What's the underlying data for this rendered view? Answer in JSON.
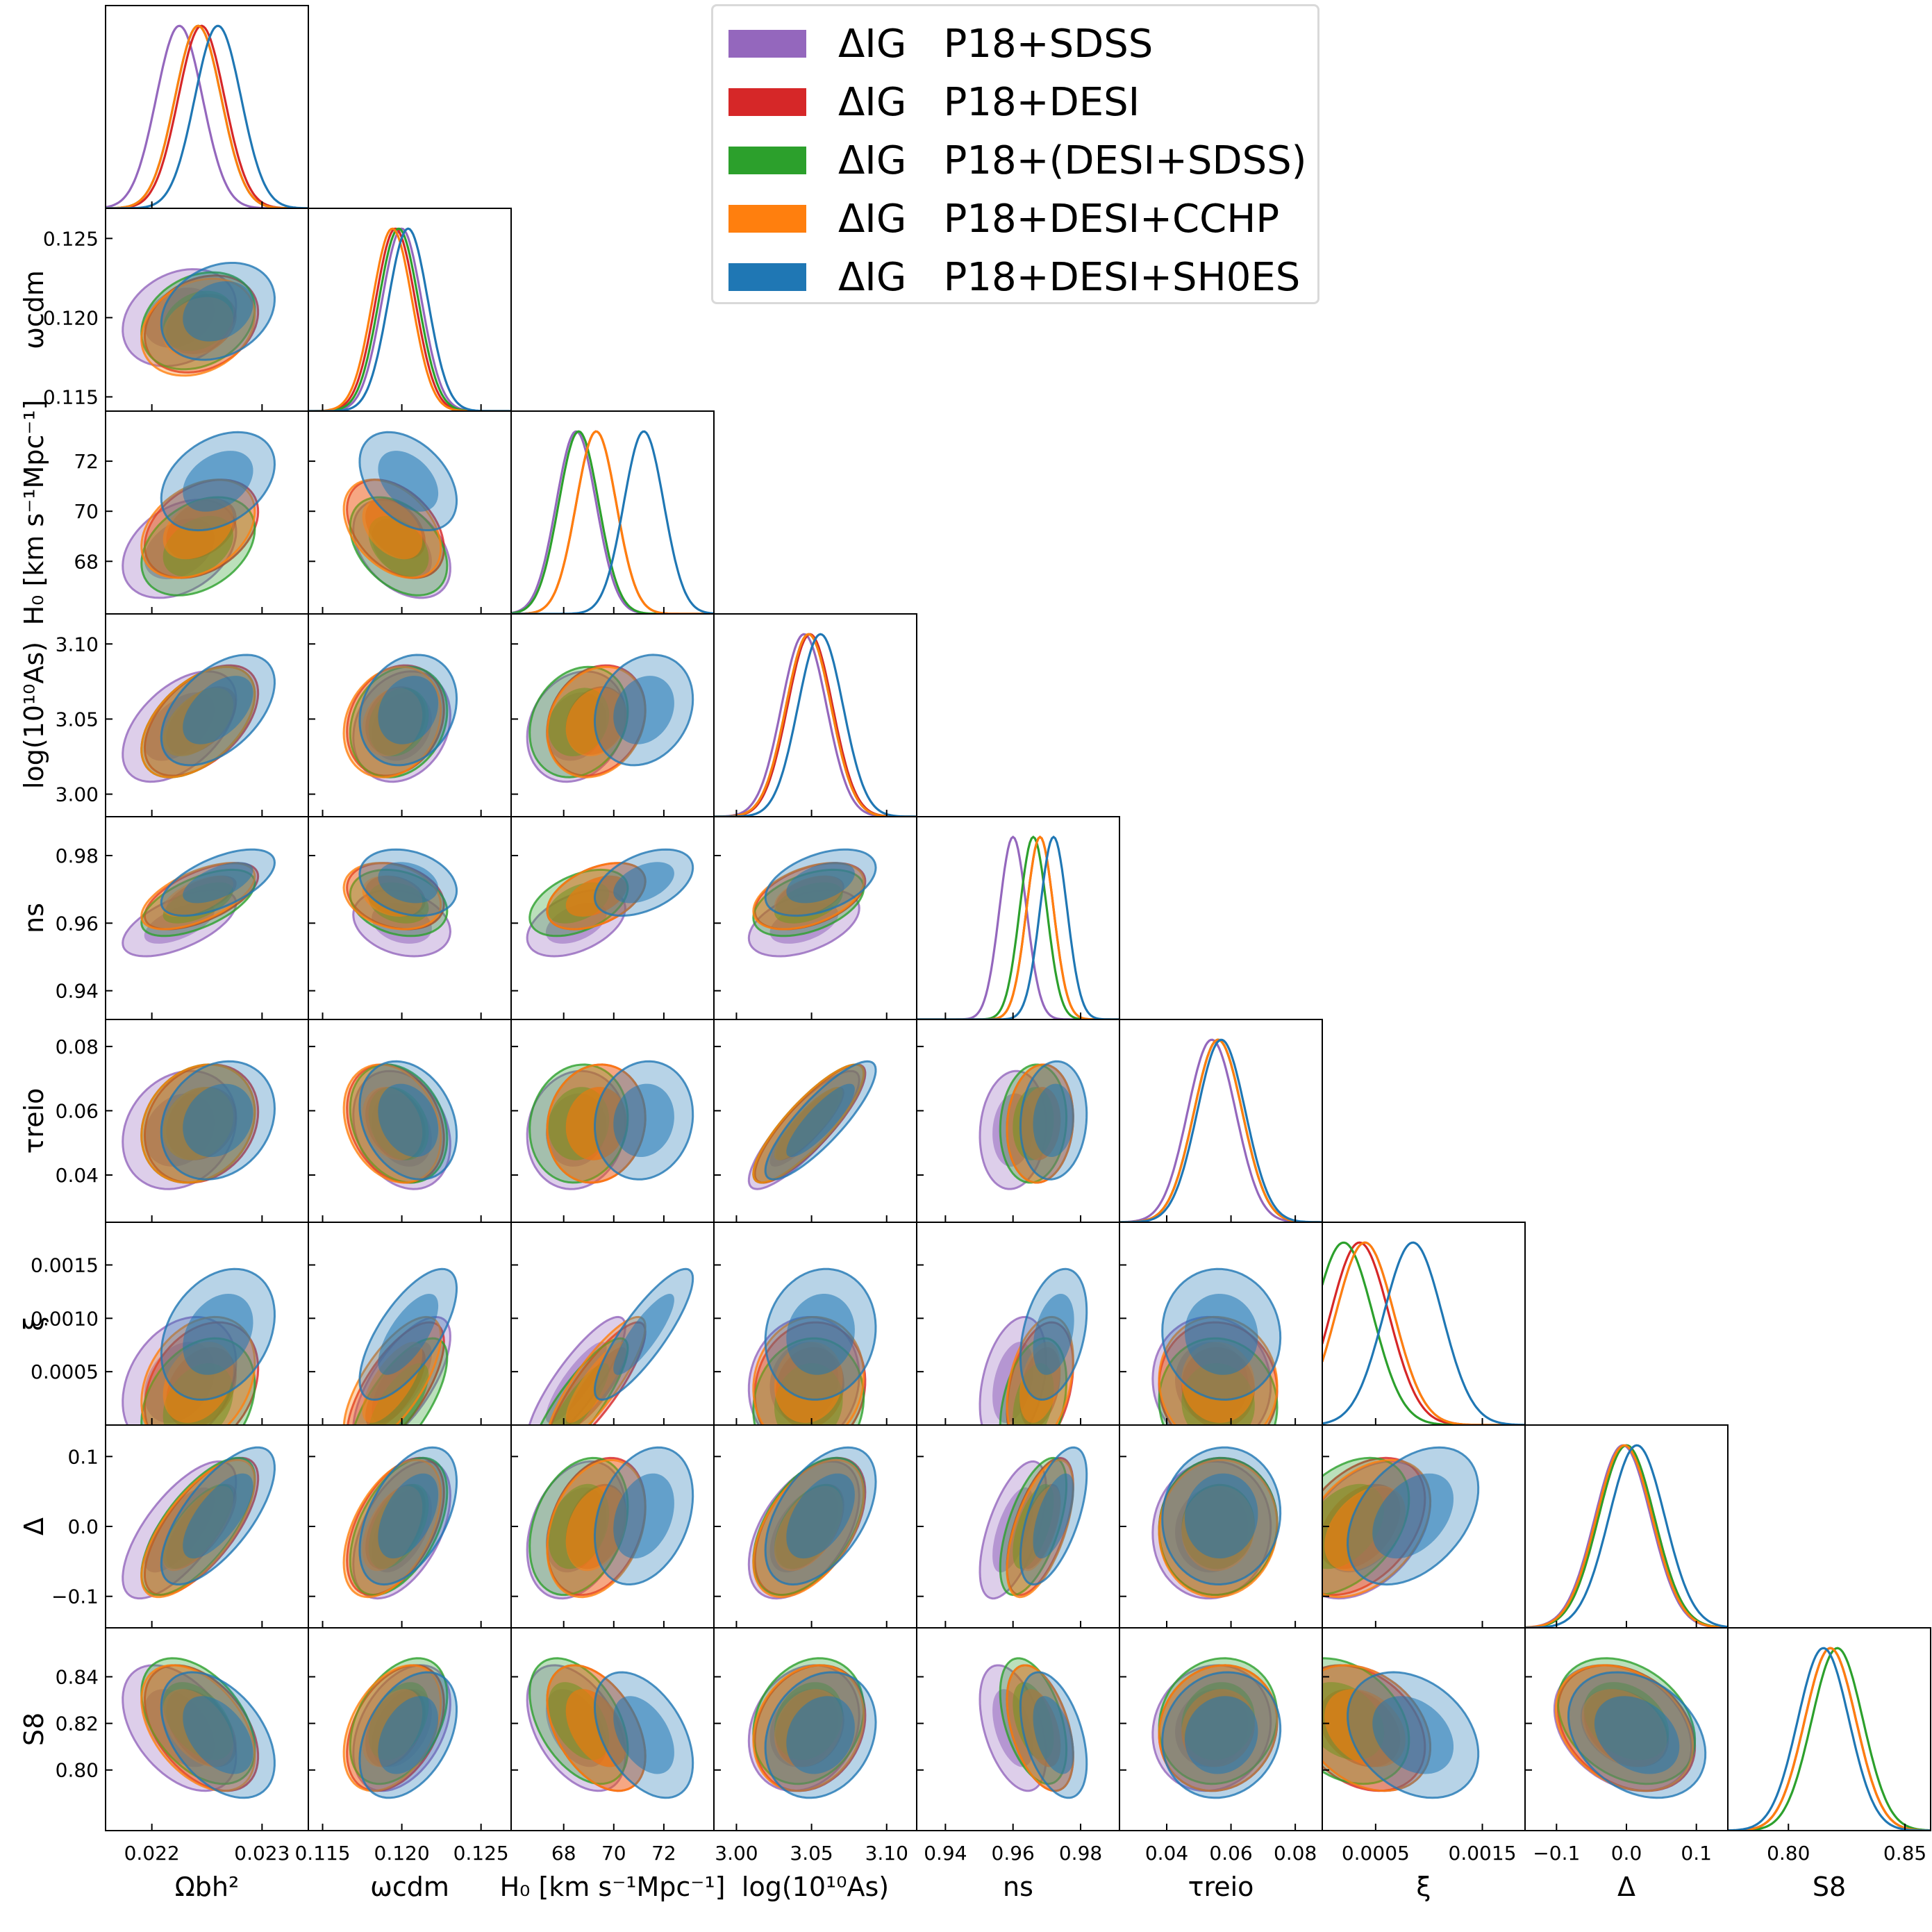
{
  "chart_data": {
    "type": "corner",
    "parameters": [
      {
        "key": "omega_b",
        "label": "Ωbh²",
        "mean": 0.02245,
        "sigma": 0.00021,
        "ticks": [
          0.022,
          0.023
        ],
        "tick_labels": [
          "0.022",
          "0.023"
        ],
        "range": [
          0.02158,
          0.02342
        ]
      },
      {
        "key": "omega_cdm",
        "label": "ωcdm",
        "mean": 0.1199,
        "sigma": 0.00125,
        "ticks": [
          0.115,
          0.12,
          0.125
        ],
        "tick_labels": [
          "0.115",
          "0.120",
          "0.125"
        ],
        "range": [
          0.1141,
          0.1269
        ]
      },
      {
        "key": "H0",
        "label": "H₀ [km s⁻¹Mpc⁻¹]",
        "mean": 69.2,
        "sigma": 0.8,
        "ticks": [
          68,
          70,
          72
        ],
        "tick_labels": [
          "68",
          "70",
          "72"
        ],
        "range": [
          65.9,
          74.0
        ]
      },
      {
        "key": "logA",
        "label": "log(10¹⁰As)",
        "mean": 3.05,
        "sigma": 0.015,
        "ticks": [
          3.0,
          3.05,
          3.1
        ],
        "tick_labels": [
          "3.00",
          "3.05",
          "3.10"
        ],
        "range": [
          2.985,
          3.12
        ]
      },
      {
        "key": "n_s",
        "label": "ns",
        "mean": 0.968,
        "sigma": 0.004,
        "ticks": [
          0.94,
          0.96,
          0.98
        ],
        "tick_labels": [
          "0.94",
          "0.96",
          "0.98"
        ],
        "range": [
          0.9315,
          0.9915
        ]
      },
      {
        "key": "tau_reio",
        "label": "τreio",
        "mean": 0.056,
        "sigma": 0.0075,
        "ticks": [
          0.04,
          0.06,
          0.08
        ],
        "tick_labels": [
          "0.04",
          "0.06",
          "0.08"
        ],
        "range": [
          0.0253,
          0.0884
        ]
      },
      {
        "key": "xi",
        "label": "ξ",
        "mean": 0.0004,
        "sigma": 0.00025,
        "ticks": [
          0.0005,
          0.001,
          0.0015
        ],
        "tick_labels": [
          "0.0005",
          "0.0010",
          "0.0015"
        ],
        "tick_labels_x": [
          "0.0005",
          "0.0015"
        ],
        "ticks_x": [
          0.0005,
          0.0015
        ],
        "range": [
          0.0,
          0.0019
        ]
      },
      {
        "key": "Delta",
        "label": "Δ",
        "mean": 0.0,
        "sigma": 0.04,
        "ticks": [
          -0.1,
          0.0,
          0.1
        ],
        "tick_labels": [
          "−0.1",
          "0.0",
          "0.1"
        ],
        "range": [
          -0.145,
          0.145
        ]
      },
      {
        "key": "S8",
        "label": "S8",
        "mean": 0.818,
        "sigma": 0.011,
        "ticks": [
          0.8,
          0.82,
          0.84
        ],
        "tick_labels": [
          "0.80",
          "0.82",
          "0.84"
        ],
        "tick_labels_x": [
          "0.80",
          "0.85"
        ],
        "ticks_x": [
          0.8,
          0.85
        ],
        "range": [
          0.774,
          0.861
        ]
      }
    ],
    "series": [
      {
        "name": "ΔIG   P18+SDSS",
        "color": "#9467bd",
        "means": [
          0.02225,
          0.12,
          68.5,
          3.045,
          0.96,
          0.054,
          0.0004,
          -0.005,
          0.818
        ]
      },
      {
        "name": "ΔIG   P18+DESI",
        "color": "#d62728",
        "means": [
          0.02245,
          0.1196,
          69.3,
          3.049,
          0.968,
          0.056,
          0.00035,
          0.0,
          0.818
        ]
      },
      {
        "name": "ΔIG   P18+(DESI+SDSS)",
        "color": "#2ca02c",
        "means": [
          0.02242,
          0.1198,
          68.6,
          3.048,
          0.966,
          0.056,
          0.0002,
          0.0,
          0.821
        ]
      },
      {
        "name": "ΔIG   P18+DESI+CCHP",
        "color": "#ff7f0e",
        "means": [
          0.02242,
          0.1194,
          69.3,
          3.048,
          0.968,
          0.056,
          0.0004,
          -0.003,
          0.818
        ]
      },
      {
        "name": "ΔIG   P18+DESI+SH0ES",
        "color": "#1f77b4",
        "means": [
          0.0226,
          0.1204,
          71.2,
          3.056,
          0.972,
          0.057,
          0.00085,
          0.015,
          0.815
        ]
      }
    ],
    "legend_position": "top-right"
  }
}
